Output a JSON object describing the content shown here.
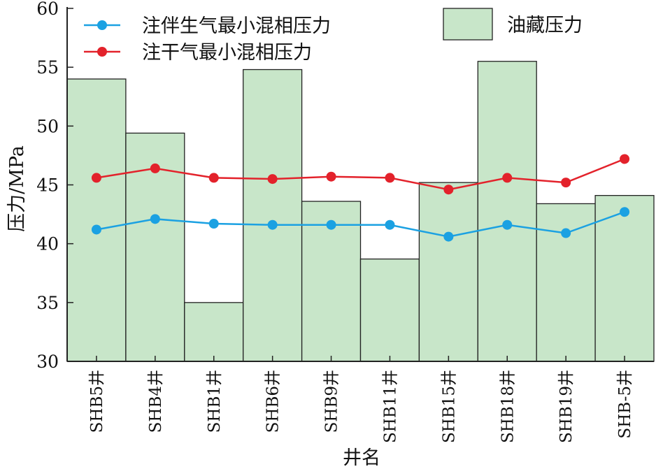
{
  "chart_data": {
    "type": "bar+line",
    "xlabel": "井名",
    "ylabel": "压力/MPa",
    "ylim": [
      30,
      60
    ],
    "yticks": [
      30,
      35,
      40,
      45,
      50,
      55,
      60
    ],
    "categories": [
      "SHB5井",
      "SHB4井",
      "SHB1井",
      "SHB6井",
      "SHB9井",
      "SHB11井",
      "SHB15井",
      "SHB18井",
      "SHB19井",
      "SHB-5井"
    ],
    "bars": {
      "name": "油藏压力",
      "color": "#c8e6c9",
      "values": [
        54.0,
        49.4,
        35.0,
        54.8,
        43.6,
        38.7,
        45.2,
        55.5,
        43.4,
        44.1
      ]
    },
    "series": [
      {
        "name": "注伴生气最小混相压力",
        "color": "#1ba1e2",
        "values": [
          41.2,
          42.1,
          41.7,
          41.6,
          41.6,
          41.6,
          40.6,
          41.6,
          40.9,
          42.7
        ]
      },
      {
        "name": "注干气最小混相压力",
        "color": "#e3222b",
        "values": [
          45.6,
          46.4,
          45.6,
          45.5,
          45.7,
          45.6,
          44.6,
          45.6,
          45.2,
          47.2
        ]
      }
    ],
    "legend": "top",
    "grid": false
  }
}
